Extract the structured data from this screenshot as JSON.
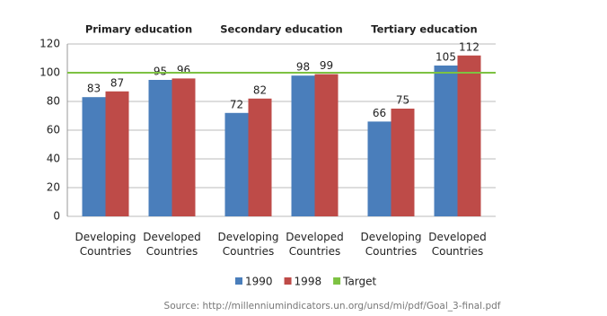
{
  "chart_data": {
    "type": "bar",
    "groups": [
      "Primary education",
      "Secondary education",
      "Tertiary education"
    ],
    "categories": [
      "Developing Countries",
      "Developed Countries",
      "Developing Countries",
      "Developed Countries",
      "Developing Countries",
      "Developed Countries"
    ],
    "series": [
      {
        "name": "1990",
        "color": "#4a7ebb",
        "values": [
          83,
          95,
          72,
          98,
          66,
          105
        ]
      },
      {
        "name": "1998",
        "color": "#be4b48",
        "values": [
          87,
          96,
          82,
          99,
          75,
          112
        ]
      }
    ],
    "target": {
      "name": "Target",
      "value": 100,
      "color": "#7dc242"
    },
    "ylim": [
      0,
      120
    ],
    "yticks": [
      0,
      20,
      40,
      60,
      80,
      100,
      120
    ],
    "grid": true,
    "source": "Source: http://millenniumindicators.un.org/unsd/mi/pdf/Goal_3-final.pdf"
  }
}
